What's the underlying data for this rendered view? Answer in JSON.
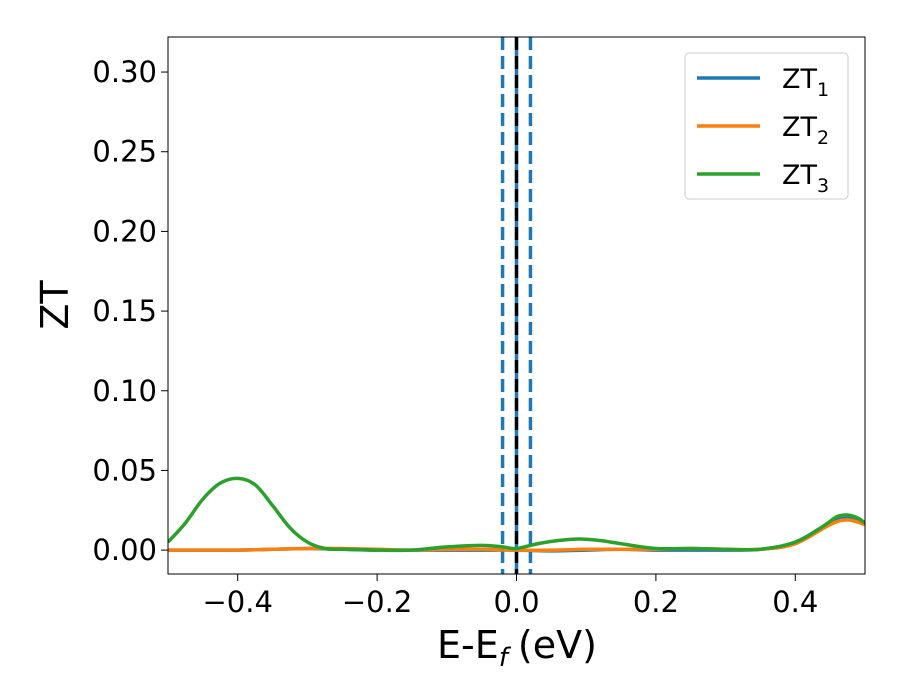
{
  "chart_data": {
    "type": "line",
    "xlabel": "E-E",
    "xlabel_sub": "f",
    "xlabel_unit": "(eV)",
    "ylabel": "ZT",
    "xlim": [
      -0.5,
      0.5
    ],
    "ylim": [
      -0.015,
      0.322
    ],
    "x_ticks": [
      -0.4,
      -0.2,
      0.0,
      0.2,
      0.4
    ],
    "x_tick_labels": [
      "−0.4",
      "−0.2",
      "0.0",
      "0.2",
      "0.4"
    ],
    "y_ticks": [
      0.0,
      0.05,
      0.1,
      0.15,
      0.2,
      0.25,
      0.3
    ],
    "y_tick_labels": [
      "0.00",
      "0.05",
      "0.10",
      "0.15",
      "0.20",
      "0.25",
      "0.30"
    ],
    "grid": false,
    "legend_position": "top-right",
    "series": [
      {
        "name": "ZT",
        "name_sub": "1",
        "color": "#1f77b4",
        "x": [
          -0.5,
          -0.45,
          -0.4,
          -0.35,
          -0.3,
          -0.25,
          -0.2,
          -0.15,
          -0.1,
          -0.05,
          0.0,
          0.05,
          0.1,
          0.15,
          0.2,
          0.25,
          0.3,
          0.35,
          0.4,
          0.45,
          0.475,
          0.5
        ],
        "y": [
          0.0,
          0.0,
          0.0,
          0.0005,
          0.001,
          0.0005,
          0.0,
          0.0,
          0.0,
          0.0,
          0.0,
          -0.0005,
          0.0,
          0.0005,
          0.0,
          0.0,
          0.0,
          0.0005,
          0.005,
          0.017,
          0.02,
          0.017
        ]
      },
      {
        "name": "ZT",
        "name_sub": "2",
        "color": "#ff7f0e",
        "x": [
          -0.5,
          -0.45,
          -0.4,
          -0.35,
          -0.3,
          -0.25,
          -0.2,
          -0.15,
          -0.1,
          -0.05,
          0.0,
          0.05,
          0.1,
          0.15,
          0.2,
          0.25,
          0.3,
          0.35,
          0.4,
          0.45,
          0.475,
          0.5
        ],
        "y": [
          0.0,
          0.0,
          0.0,
          0.0005,
          0.001,
          0.001,
          0.0005,
          0.0,
          0.0005,
          0.0005,
          0.0,
          0.0,
          0.0005,
          0.0005,
          0.0005,
          0.001,
          0.0005,
          0.0005,
          0.004,
          0.016,
          0.019,
          0.016
        ]
      },
      {
        "name": "ZT",
        "name_sub": "3",
        "color": "#2ca02c",
        "x": [
          -0.5,
          -0.475,
          -0.45,
          -0.425,
          -0.4,
          -0.375,
          -0.35,
          -0.325,
          -0.3,
          -0.275,
          -0.25,
          -0.2,
          -0.15,
          -0.1,
          -0.05,
          -0.02,
          0.0,
          0.03,
          0.06,
          0.09,
          0.12,
          0.15,
          0.2,
          0.25,
          0.3,
          0.35,
          0.4,
          0.44,
          0.46,
          0.475,
          0.49,
          0.5
        ],
        "y": [
          0.005,
          0.017,
          0.032,
          0.042,
          0.045,
          0.041,
          0.028,
          0.014,
          0.005,
          0.001,
          0.0005,
          0.0,
          0.0,
          0.002,
          0.003,
          0.002,
          0.001,
          0.004,
          0.006,
          0.007,
          0.006,
          0.004,
          0.001,
          0.001,
          0.0005,
          0.0005,
          0.005,
          0.015,
          0.021,
          0.022,
          0.02,
          0.017
        ]
      }
    ],
    "vertical_lines": [
      {
        "x": 0.0,
        "color": "#000000",
        "style": "dashed"
      },
      {
        "x": -0.02,
        "color": "#1f77b4",
        "style": "dashed"
      },
      {
        "x": 0.02,
        "color": "#1f77b4",
        "style": "dashed"
      },
      {
        "x": 0.0,
        "color": "#1f77b4",
        "style": "solid"
      }
    ]
  }
}
